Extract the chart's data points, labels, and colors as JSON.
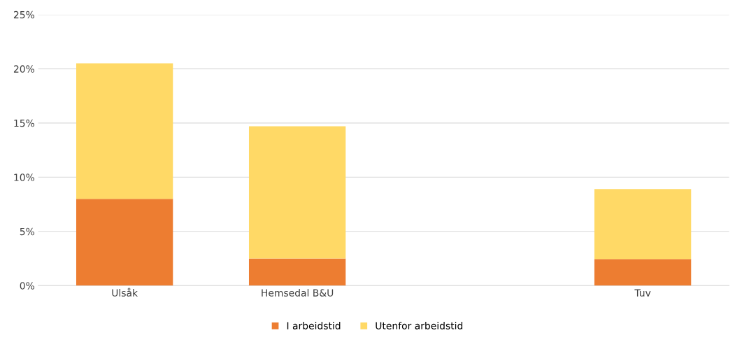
{
  "chart_data": {
    "type": "bar",
    "stacked": true,
    "categories": [
      "Ulsåk",
      "Hemsedal B&U",
      null,
      "Tuv"
    ],
    "series": [
      {
        "name": "I arbeidstid",
        "color": "#ed7d31",
        "values": [
          8.0,
          2.5,
          null,
          2.45
        ]
      },
      {
        "name": "Utenfor arbeidstid",
        "color": "#ffd966",
        "values": [
          12.5,
          12.2,
          null,
          6.45
        ]
      }
    ],
    "ylim": [
      0,
      25
    ],
    "yticks": [
      {
        "value": 0,
        "label": "0%"
      },
      {
        "value": 5,
        "label": "5%"
      },
      {
        "value": 10,
        "label": "10%"
      },
      {
        "value": 15,
        "label": "15%"
      },
      {
        "value": 20,
        "label": "20%"
      },
      {
        "value": 25,
        "label": "25%"
      }
    ],
    "grid": "y",
    "legend": "bottom"
  }
}
